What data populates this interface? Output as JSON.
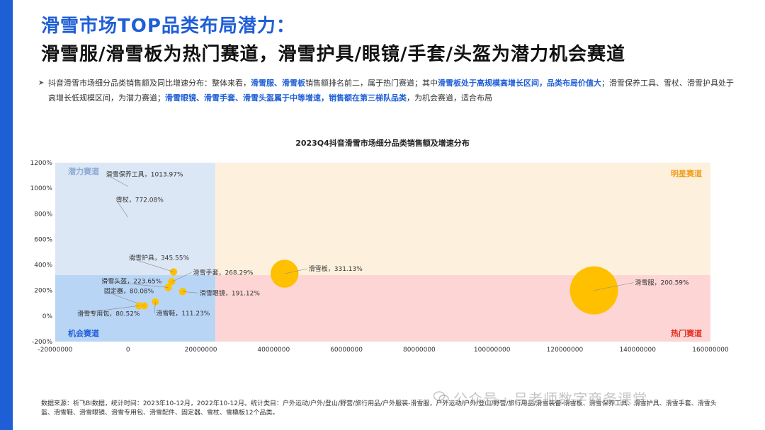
{
  "header": {
    "title_line1": "滑雪市场TOP品类布局潜力：",
    "title_line2": "滑雪服/滑雪板为热门赛道，滑雪护具/眼镜/手套/头盔为潜力机会赛道"
  },
  "summary": {
    "bullet": "➤",
    "parts": [
      {
        "t": "抖音滑雪市场细分品类销售额及同比增速分布：整体来看，",
        "hl": false
      },
      {
        "t": "滑雪服、滑雪板",
        "hl": true
      },
      {
        "t": "销售额排名前二，属于热门赛道；其中",
        "hl": false
      },
      {
        "t": "滑雪板处于高规模高增长区间，品类布局价值大",
        "hl": true
      },
      {
        "t": "；滑雪保养工具、雪杖、滑雪护具处于高增长低规模区间，为潜力赛道；",
        "hl": false
      },
      {
        "t": "滑雪眼镜、滑雪手套、滑雪头盔属于中等增速，销售额在第三梯队品类",
        "hl": true
      },
      {
        "t": "，为机会赛道，适合布局",
        "hl": false
      }
    ]
  },
  "chart_data": {
    "type": "scatter",
    "title": "2023Q4抖音滑雪市场细分品类销售额及增速分布",
    "xlabel": "",
    "ylabel": "",
    "xlim": [
      -20000000,
      160000000
    ],
    "ylim": [
      -2.0,
      12.0
    ],
    "x_ticks": [
      "-20000000",
      "0",
      "20000000",
      "40000000",
      "60000000",
      "80000000",
      "100000000",
      "120000000",
      "140000000",
      "160000000"
    ],
    "y_ticks": [
      "-200%",
      "0%",
      "200%",
      "400%",
      "600%",
      "800%",
      "1000%",
      "1200%"
    ],
    "quadrant_split": {
      "x": 24000000,
      "y": 3.2
    },
    "quadrants": [
      {
        "label": "潜力赛道",
        "position": "top-left",
        "color": "#dce7f5",
        "label_color": "#8aaad6"
      },
      {
        "label": "明星赛道",
        "position": "top-right",
        "color": "#fdf0dc",
        "label_color": "#f0a020"
      },
      {
        "label": "机会赛道",
        "position": "bottom-left",
        "color": "#b9d5f5",
        "label_color": "#1f5fd6"
      },
      {
        "label": "热门赛道",
        "position": "bottom-right",
        "color": "#fdd5d5",
        "label_color": "#e03020"
      }
    ],
    "bubble_color": "#ffc000",
    "points": [
      {
        "name": "滑雪保养工具",
        "label": "滑雪保养工具，1013.97%",
        "x": 0,
        "y": 10.1397,
        "size": 0
      },
      {
        "name": "雪杖",
        "label": "雪杖，772.08%",
        "x": 0,
        "y": 7.7208,
        "size": 0
      },
      {
        "name": "滑雪护具",
        "label": "滑雪护具，345.55%",
        "x": 12500000,
        "y": 3.4555,
        "size": 3000000
      },
      {
        "name": "滑雪板",
        "label": "滑雪板，331.13%",
        "x": 43000000,
        "y": 3.3113,
        "size": 43000000
      },
      {
        "name": "滑雪手套",
        "label": "滑雪手套，268.29%",
        "x": 12000000,
        "y": 2.6829,
        "size": 3000000
      },
      {
        "name": "滑雪头盔",
        "label": "滑雪头盔，223.65%",
        "x": 11000000,
        "y": 2.2365,
        "size": 3000000
      },
      {
        "name": "滑雪服",
        "label": "滑雪服，200.59%",
        "x": 128000000,
        "y": 2.0059,
        "size": 128000000
      },
      {
        "name": "滑雪眼镜",
        "label": "滑雪眼镜，191.12%",
        "x": 15000000,
        "y": 1.9112,
        "size": 3000000
      },
      {
        "name": "固定器",
        "label": "固定器，80.08%",
        "x": 4500000,
        "y": 0.8008,
        "size": 1000000
      },
      {
        "name": "滑雪专用包",
        "label": "滑雪专用包，80.52%",
        "x": 3000000,
        "y": 0.8052,
        "size": 700000
      },
      {
        "name": "滑雪鞋",
        "label": "滑雪鞋，111.23%",
        "x": 7500000,
        "y": 1.1123,
        "size": 1800000
      }
    ]
  },
  "footnote": "数据来源：祈飞BI数据，统计时间：2023年10-12月，2022年10-12月。统计类目：户外运动/户外/登山/野营/旅行用品/户外服装-滑雪服，户外运动/户外/登山/野营/旅行用品/滑雪装备-滑雪板、滑雪保养工具、滑雪护具、滑雪手套、滑雪头盔、滑雪鞋、滑雪眼镜、滑雪专用包、滑雪配件、固定器、雪杖、雪橇板12个品类。",
  "watermark": "公众号 · 吕老师数字商务课堂"
}
